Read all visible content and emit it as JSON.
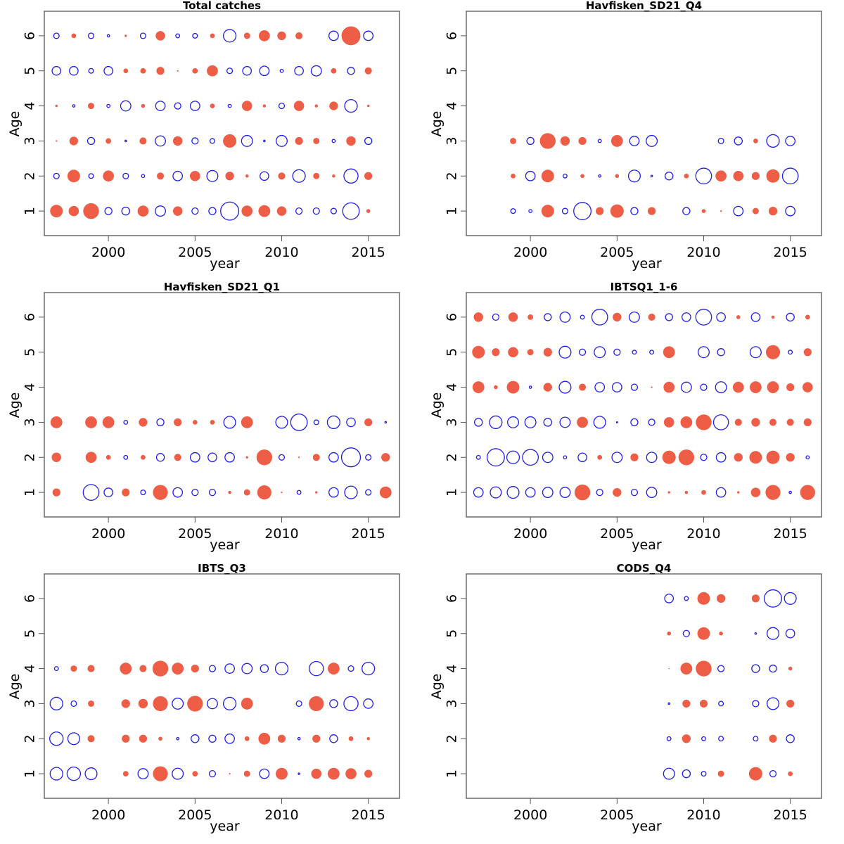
{
  "figure": {
    "xlabel": "year",
    "ylabel": "Age"
  },
  "chart_data": [
    {
      "type": "scatter",
      "subtype": "bubble-residuals",
      "title": "Total catches",
      "xlabel": "year",
      "ylabel": "Age",
      "xlim": [
        1996.3,
        2016.8
      ],
      "ylim": [
        0.3,
        6.7
      ],
      "xticks": [
        2000,
        2005,
        2010,
        2015
      ],
      "yticks": [
        1,
        2,
        3,
        4,
        5,
        6
      ],
      "legend": "none",
      "colors": {
        "positive": "#1f1fe6",
        "negative": "#ee5d45"
      },
      "note": "positive residual = open blue circle, negative = filled red circle; magnitude proportional to radius",
      "years": [
        1997,
        1998,
        1999,
        2000,
        2001,
        2002,
        2003,
        2004,
        2005,
        2006,
        2007,
        2008,
        2009,
        2010,
        2011,
        2012,
        2013,
        2014,
        2015
      ],
      "ages": {
        "1": [
          -1.6,
          -1.3,
          -2.0,
          0.9,
          1.0,
          -1.4,
          1.3,
          -1.2,
          0.8,
          0.9,
          2.3,
          -1.4,
          -1.5,
          -1.2,
          0.8,
          0.8,
          0.7,
          2.1,
          -0.5
        ],
        "2": [
          0.7,
          -1.6,
          0.6,
          -1.4,
          0.7,
          0.4,
          -0.9,
          1.2,
          -1.3,
          1.4,
          -1.1,
          -0.4,
          1.1,
          -0.9,
          1.6,
          -0.8,
          -0.4,
          1.8,
          -1.0
        ],
        "3": [
          -0.2,
          -1.1,
          0.9,
          -0.7,
          0.2,
          -0.9,
          1.3,
          -1.2,
          0.8,
          0.6,
          -1.7,
          1.4,
          0.2,
          1.4,
          -1.0,
          -0.8,
          0.4,
          -1.2,
          0.9
        ],
        "4": [
          -0.3,
          0.3,
          -0.8,
          0.4,
          1.3,
          -0.5,
          1.2,
          0.8,
          1.2,
          -0.6,
          0.4,
          -1.3,
          -0.4,
          0.7,
          -1.3,
          -0.4,
          -1.1,
          1.6,
          -0.3
        ],
        "5": [
          1.1,
          1.1,
          0.6,
          1.1,
          -0.6,
          -0.7,
          -1.0,
          -0.2,
          -0.7,
          -1.4,
          0.7,
          1.1,
          1.2,
          0.4,
          1.1,
          1.3,
          -0.7,
          0.9,
          -0.9
        ],
        "6": [
          0.7,
          -0.6,
          0.7,
          0.3,
          -0.3,
          0.7,
          -1.2,
          0.5,
          0.6,
          -0.6,
          1.6,
          -0.8,
          -1.4,
          -1.1,
          -0.9,
          null,
          1.2,
          -2.4,
          1.2
        ]
      }
    },
    {
      "type": "scatter",
      "subtype": "bubble-residuals",
      "title": "Havfisken_SD21_Q4",
      "xlabel": "year",
      "ylabel": "Age",
      "xlim": [
        1996.3,
        2016.8
      ],
      "ylim": [
        0.3,
        6.7
      ],
      "xticks": [
        2000,
        2005,
        2010,
        2015
      ],
      "yticks": [
        1,
        2,
        3,
        4,
        5,
        6
      ],
      "legend": "none",
      "colors": {
        "positive": "#1f1fe6",
        "negative": "#ee5d45"
      },
      "years": [
        1999,
        2000,
        2001,
        2002,
        2003,
        2004,
        2005,
        2006,
        2007,
        2008,
        2009,
        2010,
        2011,
        2012,
        2013,
        2014,
        2015
      ],
      "ages": {
        "1": [
          0.6,
          0.4,
          -1.6,
          0.7,
          2.2,
          -1.0,
          -1.7,
          0.9,
          -1.0,
          null,
          0.9,
          -0.5,
          -0.2,
          1.2,
          -0.8,
          -1.1,
          1.2
        ],
        "2": [
          -0.6,
          1.2,
          -1.6,
          0.5,
          -0.5,
          0.3,
          -0.5,
          1.5,
          0.2,
          1.0,
          -0.6,
          2.0,
          -1.4,
          -1.3,
          -1.0,
          -1.7,
          2.0
        ],
        "3": [
          -0.8,
          0.9,
          -2.0,
          -1.2,
          -1.0,
          0.4,
          -1.5,
          1.2,
          1.4,
          null,
          null,
          null,
          0.7,
          1.0,
          -0.6,
          1.6,
          1.2
        ]
      }
    },
    {
      "type": "scatter",
      "subtype": "bubble-residuals",
      "title": "Havfisken_SD21_Q1",
      "xlabel": "year",
      "ylabel": "Age",
      "xlim": [
        1996.3,
        2016.8
      ],
      "ylim": [
        0.3,
        6.7
      ],
      "xticks": [
        2000,
        2005,
        2010,
        2015
      ],
      "yticks": [
        1,
        2,
        3,
        4,
        5,
        6
      ],
      "legend": "none",
      "colors": {
        "positive": "#1f1fe6",
        "negative": "#ee5d45"
      },
      "years": [
        1997,
        1998,
        1999,
        2000,
        2001,
        2002,
        2003,
        2004,
        2005,
        2006,
        2007,
        2008,
        2009,
        2010,
        2011,
        2012,
        2013,
        2014,
        2015,
        2016
      ],
      "ages": {
        "1": [
          -1.0,
          null,
          2.0,
          1.1,
          -1.0,
          0.6,
          -1.9,
          1.2,
          0.8,
          0.8,
          -0.4,
          -0.8,
          -1.8,
          -0.2,
          0.5,
          -0.3,
          1.2,
          1.6,
          0.7,
          -1.5
        ],
        "2": [
          -1.2,
          null,
          -1.4,
          -0.6,
          0.5,
          -0.6,
          1.0,
          -0.9,
          1.2,
          1.1,
          1.2,
          -0.3,
          -2.0,
          0.7,
          -0.2,
          -0.9,
          1.2,
          2.4,
          0.7,
          -1.1
        ],
        "3": [
          -1.5,
          null,
          -1.5,
          -1.5,
          0.5,
          -1.1,
          0.9,
          -1.0,
          -0.6,
          -0.6,
          1.5,
          -1.5,
          null,
          1.5,
          2.1,
          0.6,
          1.6,
          1.1,
          -1.0,
          0.2
        ]
      }
    },
    {
      "type": "scatter",
      "subtype": "bubble-residuals",
      "title": "IBTSQ1_1-6",
      "xlabel": "year",
      "ylabel": "Age",
      "xlim": [
        1996.3,
        2016.8
      ],
      "ylim": [
        0.3,
        6.7
      ],
      "xticks": [
        2000,
        2005,
        2010,
        2015
      ],
      "yticks": [
        1,
        2,
        3,
        4,
        5,
        6
      ],
      "legend": "none",
      "colors": {
        "positive": "#1f1fe6",
        "negative": "#ee5d45"
      },
      "years": [
        1997,
        1998,
        1999,
        2000,
        2001,
        2002,
        2003,
        2004,
        2005,
        2006,
        2007,
        2008,
        2009,
        2010,
        2011,
        2012,
        2013,
        2014,
        2015,
        2016
      ],
      "ages": {
        "1": [
          1.2,
          1.4,
          1.5,
          1.2,
          1.3,
          1.3,
          -2.0,
          0.8,
          -1.1,
          0.8,
          1.3,
          -0.3,
          -0.4,
          -0.6,
          1.2,
          -0.3,
          -1.2,
          -1.9,
          0.3,
          -1.9
        ],
        "2": [
          0.5,
          2.2,
          1.6,
          2.0,
          1.3,
          0.4,
          1.1,
          -0.6,
          1.3,
          -1.0,
          1.3,
          -1.7,
          -2.0,
          0.8,
          1.2,
          -1.1,
          -1.6,
          -1.7,
          -1.1,
          0.4
        ],
        "3": [
          1.0,
          1.6,
          1.4,
          1.4,
          1.0,
          1.3,
          -1.4,
          1.5,
          0.1,
          0.9,
          0.8,
          -1.3,
          -1.5,
          -2.0,
          1.9,
          -0.9,
          -1.1,
          -0.9,
          -0.9,
          -1.0
        ],
        "4": [
          -1.5,
          -0.5,
          -1.6,
          0.3,
          -1.1,
          1.5,
          -0.9,
          1.2,
          1.2,
          0.8,
          -0.2,
          -1.4,
          1.3,
          0.8,
          1.4,
          -1.4,
          -1.5,
          -1.5,
          -1.0,
          -1.3
        ],
        "5": [
          -1.6,
          -1.0,
          -1.3,
          -0.8,
          -1.1,
          1.5,
          0.8,
          1.4,
          0.8,
          0.5,
          0.5,
          -1.5,
          null,
          1.4,
          0.9,
          null,
          1.4,
          -1.8,
          0.5,
          -1.0
        ],
        "6": [
          -1.2,
          0.8,
          -1.2,
          -0.7,
          0.9,
          1.3,
          0.5,
          2.0,
          -1.1,
          1.3,
          -0.9,
          0.9,
          1.1,
          2.0,
          1.1,
          -0.5,
          1.1,
          -0.4,
          1.0,
          -0.6
        ]
      }
    },
    {
      "type": "scatter",
      "subtype": "bubble-residuals",
      "title": "IBTS_Q3",
      "xlabel": "year",
      "ylabel": "Age",
      "xlim": [
        1996.3,
        2016.8
      ],
      "ylim": [
        0.3,
        6.7
      ],
      "xticks": [
        2000,
        2005,
        2010,
        2015
      ],
      "yticks": [
        1,
        2,
        3,
        4,
        5,
        6
      ],
      "legend": "none",
      "colors": {
        "positive": "#1f1fe6",
        "negative": "#ee5d45"
      },
      "years": [
        1997,
        1998,
        1999,
        2001,
        2002,
        2003,
        2004,
        2005,
        2006,
        2007,
        2008,
        2009,
        2010,
        2011,
        2012,
        2013,
        2014,
        2015
      ],
      "ages": {
        "1": [
          1.6,
          1.7,
          1.5,
          -0.7,
          1.3,
          -1.9,
          1.4,
          -0.7,
          0.8,
          -0.2,
          -0.8,
          1.2,
          -1.5,
          0.2,
          -1.3,
          -1.5,
          -1.4,
          -1.0
        ],
        "2": [
          1.7,
          1.5,
          -0.9,
          -1.0,
          -1.0,
          -0.5,
          0.3,
          1.0,
          0.9,
          1.2,
          -0.6,
          -1.5,
          -1.0,
          0.3,
          -1.0,
          1.0,
          -0.6,
          -0.4
        ],
        "3": [
          1.6,
          0.7,
          -0.8,
          -1.1,
          -1.2,
          -1.9,
          1.4,
          -2.0,
          1.3,
          1.6,
          -1.5,
          null,
          null,
          0.7,
          -1.9,
          1.0,
          1.8,
          1.2
        ],
        "4": [
          0.5,
          -0.8,
          -0.9,
          -1.5,
          -0.9,
          -2.0,
          -1.5,
          -1.0,
          0.8,
          1.2,
          1.3,
          1.0,
          1.6,
          null,
          1.8,
          -1.5,
          0.7,
          1.6
        ]
      }
    },
    {
      "type": "scatter",
      "subtype": "bubble-residuals",
      "title": "CODS_Q4",
      "xlabel": "year",
      "ylabel": "Age",
      "xlim": [
        1996.3,
        2016.8
      ],
      "ylim": [
        0.3,
        6.7
      ],
      "xticks": [
        2000,
        2005,
        2010,
        2015
      ],
      "yticks": [
        1,
        2,
        3,
        4,
        5,
        6
      ],
      "legend": "none",
      "colors": {
        "positive": "#1f1fe6",
        "negative": "#ee5d45"
      },
      "years": [
        2008,
        2009,
        2010,
        2011,
        2013,
        2014,
        2015
      ],
      "ages": {
        "1": [
          1.4,
          1.0,
          0.6,
          -0.8,
          -1.7,
          0.8,
          -0.6
        ],
        "2": [
          0.5,
          -1.1,
          0.5,
          0.6,
          0.6,
          -1.0,
          1.0
        ],
        "3": [
          0.2,
          -1.0,
          -1.0,
          0.6,
          0.8,
          1.5,
          -1.0
        ],
        "4": [
          -0.1,
          -1.5,
          -2.0,
          0.8,
          1.0,
          0.9,
          -0.5
        ],
        "5": [
          -0.5,
          0.8,
          -1.6,
          -0.5,
          0.2,
          1.5,
          1.1
        ],
        "6": [
          1.1,
          0.5,
          -1.6,
          -1.1,
          -1.0,
          2.2,
          1.5
        ]
      }
    }
  ]
}
